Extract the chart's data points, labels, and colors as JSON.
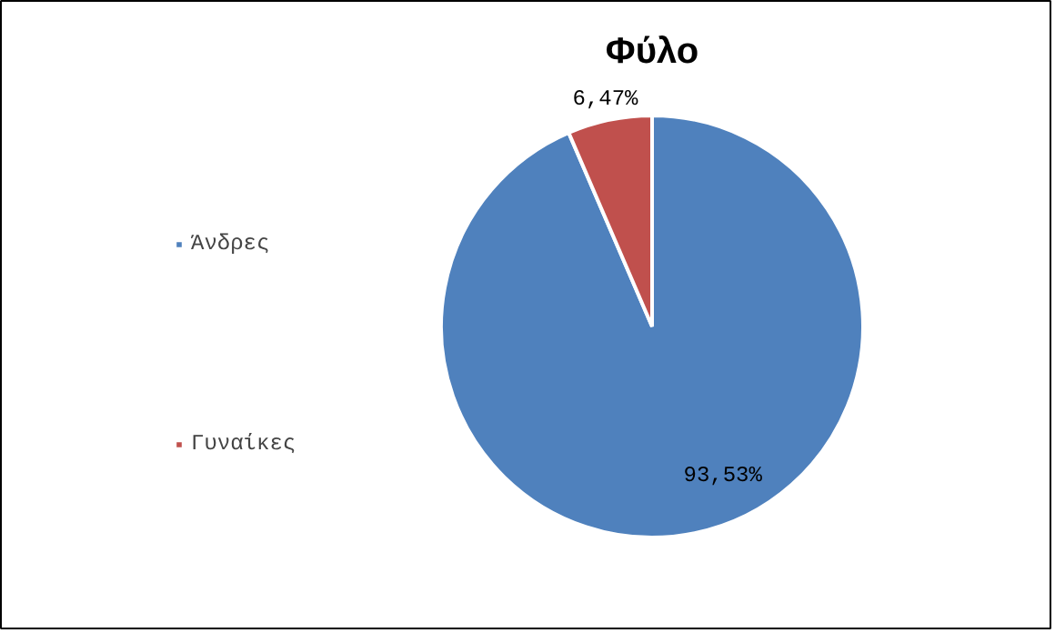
{
  "chart_data": {
    "type": "pie",
    "title": "Φύλο",
    "categories": [
      "Άνδρες",
      "Γυναίκες"
    ],
    "values": [
      93.53,
      6.47
    ],
    "colors": [
      "#4f81bd",
      "#c0504d"
    ],
    "value_labels": [
      "93,53%",
      "6,47%"
    ],
    "legend": "left"
  }
}
